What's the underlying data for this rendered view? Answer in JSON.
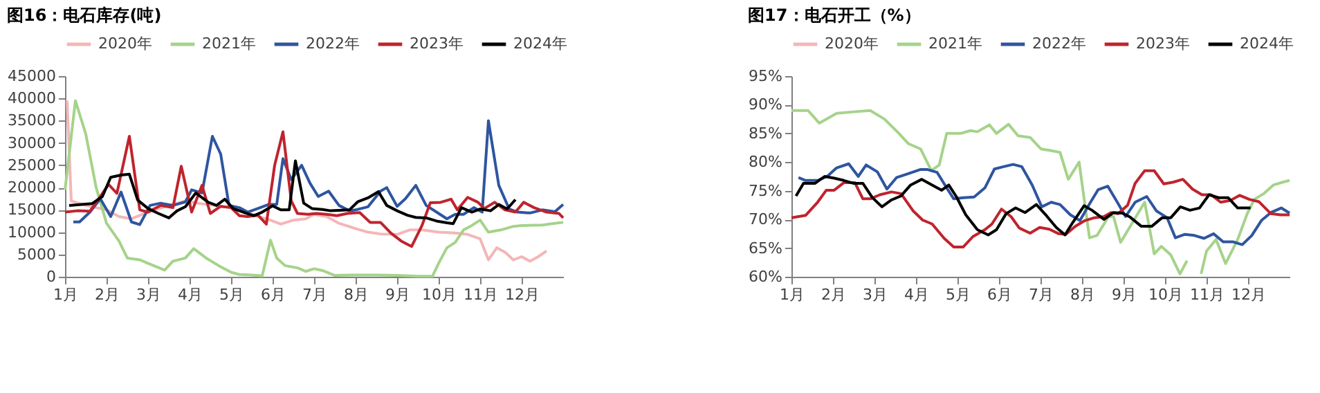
{
  "chart_data": [
    {
      "type": "line",
      "title": "图16：电石库存(吨)",
      "legend": "top",
      "grid": false,
      "line_style": "solid",
      "marker": "none",
      "xlim": [
        1,
        13
      ],
      "xticks": [
        {
          "value": 1,
          "label": "1月"
        },
        {
          "value": 2,
          "label": "2月"
        },
        {
          "value": 3,
          "label": "3月"
        },
        {
          "value": 4,
          "label": "4月"
        },
        {
          "value": 5,
          "label": "5月"
        },
        {
          "value": 6,
          "label": "6月"
        },
        {
          "value": 7,
          "label": "7月"
        },
        {
          "value": 8,
          "label": "8月"
        },
        {
          "value": 9,
          "label": "9月"
        },
        {
          "value": 10,
          "label": "10月"
        },
        {
          "value": 11,
          "label": "11月"
        },
        {
          "value": 12,
          "label": "12月"
        }
      ],
      "ylim": [
        0,
        45000
      ],
      "yticks": [
        0,
        5000,
        10000,
        15000,
        20000,
        25000,
        30000,
        35000,
        40000,
        45000
      ],
      "series": [
        {
          "name": "2020年",
          "color": "#f4b6b8",
          "x": [
            1.05,
            1.15,
            1.5,
            2.0,
            2.3,
            2.6,
            3.0,
            3.5,
            3.9,
            4.2,
            4.6,
            5.0,
            5.5,
            6.0,
            6.2,
            6.5,
            6.8,
            7.0,
            7.3,
            7.6,
            8.0,
            8.3,
            8.6,
            9.0,
            9.3,
            9.6,
            10.0,
            10.4,
            10.7,
            11.0,
            11.2,
            11.4,
            11.6,
            11.8,
            12.0,
            12.2,
            12.4,
            12.6
          ],
          "values": [
            39500,
            17000,
            16000,
            15000,
            13500,
            13000,
            14500,
            16000,
            17000,
            16500,
            16000,
            15500,
            14000,
            12500,
            11800,
            12700,
            13000,
            14000,
            13500,
            12000,
            10800,
            10000,
            9600,
            9500,
            10500,
            10500,
            10000,
            9800,
            9500,
            8500,
            3800,
            6500,
            5500,
            3800,
            4500,
            3500,
            4500,
            5800
          ]
        },
        {
          "name": "2021年",
          "color": "#a5d38a",
          "x": [
            1.0,
            1.25,
            1.5,
            1.75,
            2.0,
            2.3,
            2.5,
            2.8,
            3.0,
            3.4,
            3.6,
            3.9,
            4.1,
            4.4,
            4.7,
            5.0,
            5.2,
            5.5,
            5.75,
            5.95,
            6.1,
            6.3,
            6.6,
            6.8,
            7.0,
            7.2,
            7.5,
            8.0,
            8.5,
            9.0,
            9.5,
            9.85,
            10.0,
            10.2,
            10.4,
            10.6,
            10.8,
            11.0,
            11.2,
            11.5,
            11.8,
            12.0,
            12.5,
            12.8,
            13.0
          ],
          "values": [
            19500,
            39500,
            32000,
            20000,
            12000,
            8000,
            4200,
            3800,
            3000,
            1500,
            3500,
            4200,
            6300,
            4200,
            2500,
            1000,
            500,
            400,
            200,
            8200,
            4200,
            2500,
            2000,
            1200,
            1800,
            1400,
            300,
            400,
            400,
            300,
            100,
            100,
            3000,
            6500,
            7700,
            10500,
            11500,
            12700,
            10000,
            10500,
            11300,
            11500,
            11600,
            12000,
            12200
          ]
        },
        {
          "name": "2022年",
          "color": "#2e55a0",
          "x": [
            1.2,
            1.35,
            1.6,
            1.85,
            2.1,
            2.35,
            2.6,
            2.8,
            3.05,
            3.3,
            3.6,
            3.9,
            4.05,
            4.3,
            4.55,
            4.75,
            4.95,
            5.2,
            5.4,
            5.7,
            5.9,
            6.1,
            6.25,
            6.45,
            6.7,
            6.9,
            7.1,
            7.35,
            7.6,
            7.85,
            8.0,
            8.3,
            8.6,
            8.75,
            9.0,
            9.2,
            9.45,
            9.7,
            9.95,
            10.2,
            10.4,
            10.6,
            10.85,
            11.05,
            11.2,
            11.45,
            11.7,
            11.9,
            12.2,
            12.5,
            12.8,
            13.0
          ],
          "values": [
            12300,
            12300,
            14500,
            17500,
            13500,
            19000,
            12300,
            11700,
            16000,
            16500,
            16000,
            16800,
            19500,
            18800,
            31500,
            27500,
            16000,
            15500,
            14500,
            15500,
            16200,
            16200,
            26500,
            21800,
            25000,
            21000,
            18000,
            19200,
            16000,
            14800,
            15000,
            15700,
            19200,
            20000,
            15800,
            17500,
            20500,
            16000,
            14500,
            13000,
            14000,
            14000,
            15500,
            14500,
            35000,
            20500,
            15200,
            14500,
            14300,
            15000,
            14600,
            16200
          ]
        },
        {
          "name": "2023年",
          "color": "#c0232d",
          "x": [
            1.0,
            1.3,
            1.6,
            1.85,
            2.05,
            2.25,
            2.55,
            2.8,
            3.0,
            3.3,
            3.6,
            3.8,
            4.05,
            4.3,
            4.5,
            4.75,
            5.0,
            5.2,
            5.4,
            5.65,
            5.85,
            6.05,
            6.25,
            6.45,
            6.6,
            6.85,
            7.05,
            7.3,
            7.55,
            7.8,
            8.1,
            8.35,
            8.6,
            8.85,
            9.1,
            9.35,
            9.6,
            9.8,
            10.05,
            10.3,
            10.45,
            10.7,
            10.95,
            11.1,
            11.35,
            11.6,
            11.85,
            12.05,
            12.3,
            12.6,
            12.9,
            13.0
          ],
          "values": [
            14500,
            14800,
            14700,
            18000,
            20700,
            18700,
            31500,
            15000,
            14500,
            16000,
            15500,
            24800,
            14500,
            20500,
            14200,
            15800,
            15500,
            13700,
            13500,
            13800,
            11800,
            25000,
            32500,
            17000,
            14200,
            14000,
            14200,
            14000,
            13700,
            14200,
            14400,
            12200,
            12200,
            9800,
            8000,
            6800,
            11500,
            16600,
            16700,
            17400,
            15000,
            17800,
            16700,
            15300,
            16700,
            15000,
            14500,
            16700,
            15500,
            14500,
            14200,
            13200
          ]
        },
        {
          "name": "2024年",
          "color": "#000000",
          "x": [
            1.1,
            1.4,
            1.65,
            1.9,
            2.1,
            2.35,
            2.55,
            2.75,
            3.0,
            3.25,
            3.5,
            3.7,
            3.9,
            4.15,
            4.45,
            4.65,
            4.85,
            5.05,
            5.35,
            5.55,
            5.75,
            6.0,
            6.2,
            6.4,
            6.55,
            6.75,
            6.95,
            7.2,
            7.4,
            7.6,
            7.85,
            8.05,
            8.3,
            8.55,
            8.75,
            9.0,
            9.25,
            9.45,
            9.7,
            9.95,
            10.2,
            10.35,
            10.55,
            10.8,
            11.0,
            11.25,
            11.45,
            11.65,
            11.85
          ],
          "values": [
            16000,
            16200,
            16400,
            18000,
            22300,
            22800,
            23000,
            17200,
            15300,
            14200,
            13200,
            14800,
            15700,
            18800,
            16700,
            16000,
            17400,
            15300,
            14300,
            13700,
            14500,
            15900,
            15000,
            15000,
            26000,
            16500,
            15300,
            15100,
            14800,
            14900,
            15000,
            16800,
            17700,
            19100,
            16000,
            14800,
            13800,
            13300,
            13200,
            12500,
            12100,
            11900,
            15500,
            14500,
            15200,
            14800,
            16200,
            15200,
            17300
          ]
        }
      ]
    },
    {
      "type": "line",
      "title": "图17：电石开工（%）",
      "legend": "top",
      "grid": false,
      "line_style": "solid",
      "marker": "none",
      "xlim": [
        1,
        13
      ],
      "xticks": [
        {
          "value": 1,
          "label": "1月"
        },
        {
          "value": 2,
          "label": "2月"
        },
        {
          "value": 3,
          "label": "3月"
        },
        {
          "value": 4,
          "label": "4月"
        },
        {
          "value": 5,
          "label": "5月"
        },
        {
          "value": 6,
          "label": "6月"
        },
        {
          "value": 7,
          "label": "7月"
        },
        {
          "value": 8,
          "label": "8月"
        },
        {
          "value": 9,
          "label": "9月"
        },
        {
          "value": 10,
          "label": "10月"
        },
        {
          "value": 11,
          "label": "11月"
        },
        {
          "value": 12,
          "label": "12月"
        }
      ],
      "ylim": [
        60,
        95
      ],
      "yticks": [
        {
          "value": 60,
          "label": "60%"
        },
        {
          "value": 65,
          "label": "65%"
        },
        {
          "value": 70,
          "label": "70%"
        },
        {
          "value": 75,
          "label": "75%"
        },
        {
          "value": 80,
          "label": "80%"
        },
        {
          "value": 85,
          "label": "85%"
        },
        {
          "value": 90,
          "label": "90%"
        },
        {
          "value": 95,
          "label": "95%"
        }
      ],
      "series": [
        {
          "name": "2020年",
          "color": "#f4b6b8"
        },
        {
          "name": "2021年",
          "color": "#a5d38a",
          "x": [
            1.0,
            1.4,
            1.67,
            2.09,
            2.55,
            2.9,
            3.24,
            3.59,
            3.82,
            4.11,
            4.37,
            4.56,
            4.74,
            5.08,
            5.31,
            5.48,
            5.77,
            5.94,
            6.23,
            6.46,
            6.75,
            7.01,
            7.26,
            7.47,
            7.67,
            7.93,
            8.18,
            8.36,
            8.64,
            8.76,
            8.93,
            9.22,
            9.51,
            9.74,
            9.91,
            10.14,
            10.36,
            10.53,
            10.72,
            10.87,
            11.0,
            11.23,
            11.46,
            11.75,
            11.98,
            12.15,
            12.38,
            12.61,
            12.84,
            13.0
          ],
          "values": [
            89,
            89,
            86.8,
            88.5,
            88.8,
            89,
            87.5,
            85,
            83.2,
            82.3,
            78.5,
            79.5,
            85,
            85,
            85.5,
            85.3,
            86.5,
            85,
            86.6,
            84.6,
            84.3,
            82.3,
            82,
            81.7,
            77,
            80,
            66.8,
            67.2,
            70.5,
            70.5,
            66,
            69.5,
            73,
            64,
            65.3,
            63.8,
            60.5,
            62.8,
            null,
            60.5,
            64.5,
            66.5,
            62.3,
            66.5,
            71,
            73.5,
            74.5,
            76,
            76.5,
            76.8
          ]
        },
        {
          "name": "2022年",
          "color": "#2e55a0",
          "x": [
            1.17,
            1.34,
            1.63,
            1.86,
            2.09,
            2.38,
            2.61,
            2.8,
            3.07,
            3.3,
            3.53,
            3.82,
            4.1,
            4.28,
            4.51,
            4.74,
            4.91,
            5.14,
            5.4,
            5.66,
            5.89,
            6.11,
            6.34,
            6.55,
            6.8,
            7.03,
            7.26,
            7.47,
            7.72,
            7.95,
            8.18,
            8.39,
            8.62,
            8.85,
            9.05,
            9.28,
            9.56,
            9.79,
            10.05,
            10.25,
            10.48,
            10.71,
            10.94,
            11.17,
            11.4,
            11.63,
            11.86,
            12.09,
            12.32,
            12.55,
            12.8,
            13.0
          ],
          "values": [
            77.3,
            76.8,
            76.8,
            77.5,
            79,
            79.7,
            77.5,
            79.5,
            78.3,
            75.3,
            77.3,
            78,
            78.7,
            78.7,
            78.2,
            75.5,
            73.6,
            73.8,
            73.9,
            75.5,
            78.8,
            79.2,
            79.6,
            79.2,
            76,
            72.2,
            73,
            72.6,
            70.8,
            69.8,
            72.7,
            75.2,
            75.8,
            73,
            70.5,
            73,
            74,
            71.5,
            70.3,
            66.8,
            67.4,
            67.2,
            66.7,
            67.5,
            66.1,
            66.1,
            65.6,
            67.2,
            69.8,
            71.2,
            72,
            71.1
          ]
        },
        {
          "name": "2023年",
          "color": "#c0232d",
          "x": [
            1.0,
            1.34,
            1.63,
            1.84,
            2.03,
            2.26,
            2.53,
            2.72,
            2.9,
            3.13,
            3.41,
            3.64,
            3.93,
            4.16,
            4.39,
            4.68,
            4.91,
            5.14,
            5.37,
            5.66,
            5.83,
            6.06,
            6.29,
            6.49,
            6.75,
            6.98,
            7.21,
            7.44,
            7.61,
            7.84,
            8.07,
            8.3,
            8.53,
            8.7,
            8.87,
            9.1,
            9.28,
            9.51,
            9.74,
            9.97,
            10.2,
            10.43,
            10.66,
            10.89,
            11.11,
            11.34,
            11.57,
            11.8,
            12.03,
            12.26,
            12.55,
            12.78,
            13.0
          ],
          "values": [
            70.3,
            70.7,
            73,
            75.1,
            75.1,
            76.4,
            76.4,
            73.6,
            73.6,
            74.3,
            74.8,
            74.5,
            71.5,
            69.9,
            69.2,
            66.7,
            65.2,
            65.2,
            67,
            68.2,
            69.2,
            71.8,
            70.5,
            68.5,
            67.6,
            68.6,
            68.3,
            67.5,
            67.4,
            68.8,
            69.8,
            70.3,
            70.5,
            71.2,
            71,
            72.5,
            76.3,
            78.5,
            78.5,
            76.2,
            76.5,
            77,
            75.3,
            74.3,
            74.3,
            73,
            73.3,
            74.2,
            73.5,
            73.1,
            71,
            70.8,
            70.8
          ]
        },
        {
          "name": "2024年",
          "color": "#000000",
          "x": [
            1.11,
            1.29,
            1.57,
            1.8,
            2.03,
            2.26,
            2.49,
            2.72,
            2.95,
            3.18,
            3.41,
            3.64,
            3.87,
            4.14,
            4.39,
            4.62,
            4.79,
            4.97,
            5.2,
            5.48,
            5.74,
            5.94,
            6.17,
            6.4,
            6.63,
            6.9,
            7.15,
            7.38,
            7.59,
            7.78,
            8.05,
            8.24,
            8.53,
            8.76,
            8.97,
            9.16,
            9.43,
            9.68,
            9.93,
            10.14,
            10.37,
            10.6,
            10.83,
            11.06,
            11.29,
            11.52,
            11.75,
            12.06
          ],
          "values": [
            74.1,
            76.3,
            76.3,
            77.5,
            77.2,
            76.8,
            76.3,
            76.3,
            73.8,
            72.2,
            73.4,
            74.1,
            76,
            77,
            76,
            75.1,
            76,
            74,
            70.8,
            68.2,
            67.3,
            68.2,
            71,
            72,
            71.2,
            72.6,
            70.6,
            68.6,
            67.3,
            69.5,
            72.4,
            71.6,
            70,
            71.2,
            71.1,
            70.4,
            68.8,
            68.8,
            70.3,
            70.3,
            72.2,
            71.6,
            72,
            74.3,
            73.8,
            73.8,
            72,
            72
          ]
        }
      ]
    }
  ]
}
